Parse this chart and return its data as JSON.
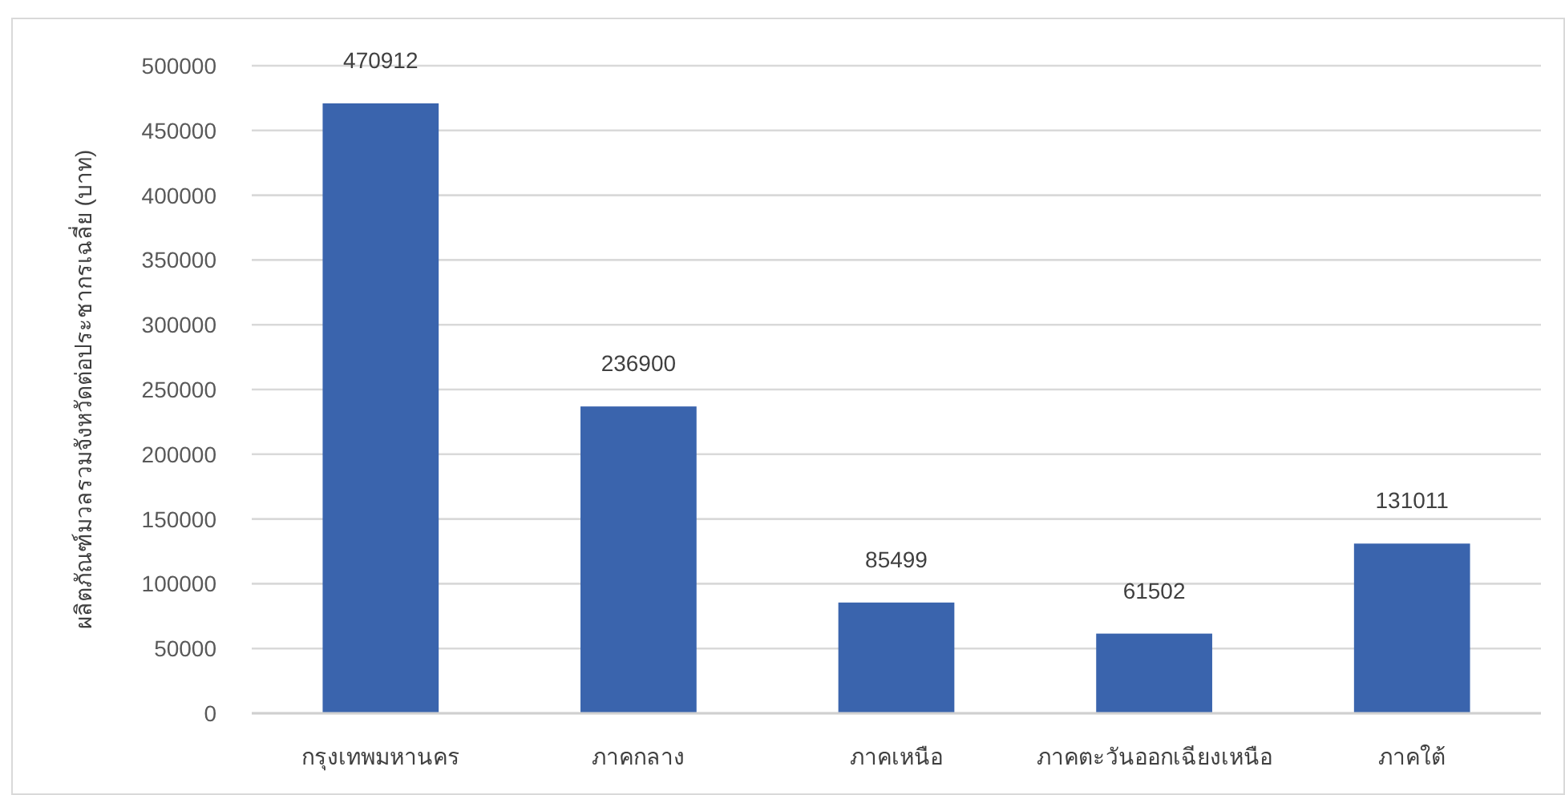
{
  "chart_data": {
    "type": "bar",
    "ylabel": "ผลิตภัณฑ์มวลรวมจังหวัดต่อประชากรเฉลี่ย (บาท)",
    "categories": [
      "กรุงเทพมหานคร",
      "ภาคกลาง",
      "ภาคเหนือ",
      "ภาคตะวันออกเฉียงเหนือ",
      "ภาคใต้"
    ],
    "values": [
      470912,
      236900,
      85499,
      61502,
      131011
    ],
    "color": "#3a64ad",
    "ylim": [
      0,
      500000
    ],
    "yticks": [
      0,
      50000,
      100000,
      150000,
      200000,
      250000,
      300000,
      350000,
      400000,
      450000,
      500000
    ],
    "grid": "y",
    "data_labels": true
  }
}
